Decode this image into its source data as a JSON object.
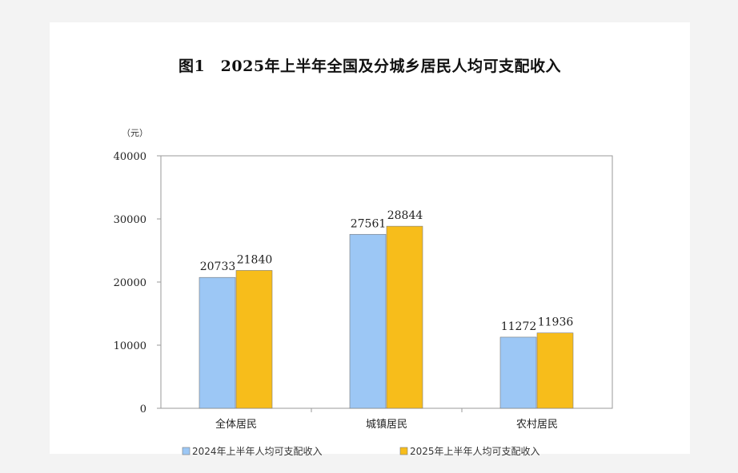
{
  "chart_data": {
    "type": "bar",
    "title": "图1　2025年上半年全国及分城乡居民人均可支配收入",
    "unit": "（元）",
    "categories": [
      "全体居民",
      "城镇居民",
      "农村居民"
    ],
    "series": [
      {
        "name": "2024年上半年人均可支配收入",
        "values": [
          20733,
          27561,
          11272
        ],
        "color": "#9cc7f5"
      },
      {
        "name": "2025年上半年人均可支配收入",
        "values": [
          21840,
          28844,
          11936
        ],
        "color": "#f7bd1b"
      }
    ],
    "ylim": [
      0,
      40000
    ],
    "yticks": [
      0,
      10000,
      20000,
      30000,
      40000
    ],
    "ytick_labels": [
      "0",
      "10000",
      "20000",
      "30000",
      "40000"
    ],
    "grid": false,
    "legend_position": "bottom"
  }
}
